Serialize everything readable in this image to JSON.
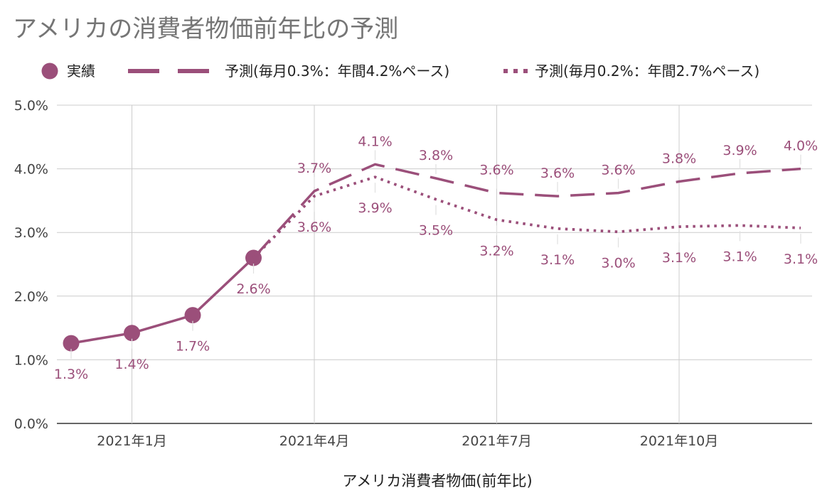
{
  "chart_data": {
    "type": "line",
    "title": "アメリカの消費者物価前年比の予測",
    "xlabel": "アメリカ消費者物価(前年比)",
    "ylabel": "",
    "ylim": [
      0,
      5
    ],
    "yticks": [
      "0.0%",
      "1.0%",
      "2.0%",
      "3.0%",
      "4.0%",
      "5.0%"
    ],
    "xtick_labels": [
      {
        "index": 1,
        "label": "2021年1月"
      },
      {
        "index": 4,
        "label": "2021年4月"
      },
      {
        "index": 7,
        "label": "2021年7月"
      },
      {
        "index": 10,
        "label": "2021年10月"
      }
    ],
    "grid": true,
    "legend_position": "top",
    "color": "#9b4f7a",
    "series": [
      {
        "name": "実績",
        "style": "solid-markers",
        "x": [
          0,
          1,
          2,
          3
        ],
        "values": [
          1.26,
          1.42,
          1.7,
          2.6
        ],
        "labels": [
          "1.3%",
          "1.4%",
          "1.7%",
          "2.6%"
        ]
      },
      {
        "name": "予測(毎月0.3%：年間4.2%ペース)",
        "style": "dashed",
        "x": [
          3,
          4,
          5,
          6,
          7,
          8,
          9,
          10,
          11,
          12
        ],
        "values": [
          2.6,
          3.65,
          4.07,
          3.85,
          3.62,
          3.57,
          3.62,
          3.8,
          3.93,
          4.0
        ],
        "labels": [
          "",
          "3.7%",
          "4.1%",
          "3.8%",
          "3.6%",
          "3.6%",
          "3.6%",
          "3.8%",
          "3.9%",
          "4.0%"
        ]
      },
      {
        "name": "予測(毎月0.2%：年間2.7%ペース)",
        "style": "dotted",
        "x": [
          3,
          4,
          5,
          6,
          7,
          8,
          9,
          10,
          11,
          12
        ],
        "values": [
          2.6,
          3.57,
          3.87,
          3.52,
          3.2,
          3.06,
          3.01,
          3.09,
          3.11,
          3.07
        ],
        "labels": [
          "",
          "3.6%",
          "3.9%",
          "3.5%",
          "3.2%",
          "3.1%",
          "3.0%",
          "3.1%",
          "3.1%",
          "3.1%"
        ]
      }
    ]
  }
}
